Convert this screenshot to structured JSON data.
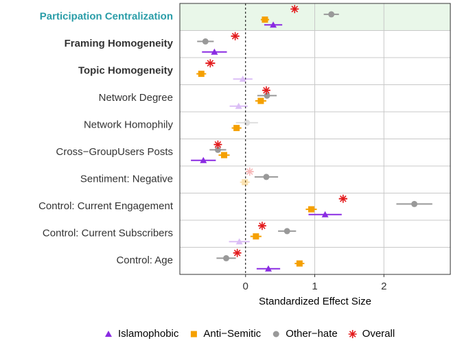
{
  "chart_data": {
    "type": "dot_whisker",
    "xlabel": "Standardized Effect Size",
    "categories": [
      "Participation Centralization",
      "Framing Homogeneity",
      "Topic Homogeneity",
      "Network Degree",
      "Network Homophily",
      "Cross−GroupUsers Posts",
      "Sentiment: Negative",
      "Control: Current Engagement",
      "Control: Current Subscribers",
      "Control: Age"
    ],
    "highlight_category": 0,
    "highlight_color": "#2a9da8",
    "highlight_fill": "#e9f7e9",
    "bold_categories": [
      1,
      2
    ],
    "xlim": [
      -0.95,
      2.96
    ],
    "xticks": [
      0,
      1,
      2
    ],
    "refline": 0,
    "grid": true,
    "legend": "bottom",
    "series": [
      {
        "name": "Islamophobic",
        "color": "#8a2be2",
        "marker": "triangle",
        "values": [
          0.4,
          -0.45,
          -0.04,
          -0.1,
          null,
          -0.61,
          null,
          1.15,
          -0.09,
          0.33
        ],
        "errors": [
          0.13,
          0.18,
          0.14,
          0.13,
          null,
          0.18,
          null,
          0.24,
          0.15,
          0.17
        ],
        "faded": [
          false,
          false,
          true,
          true,
          false,
          false,
          false,
          false,
          true,
          false
        ]
      },
      {
        "name": "Anti−Semitic",
        "color": "#f5a000",
        "marker": "square",
        "values": [
          0.28,
          null,
          -0.64,
          0.22,
          -0.13,
          -0.31,
          -0.01,
          0.95,
          0.15,
          0.78
        ],
        "errors": [
          0.06,
          null,
          0.07,
          0.08,
          0.07,
          0.08,
          0.07,
          0.08,
          0.08,
          0.07
        ],
        "faded": [
          false,
          false,
          false,
          false,
          false,
          false,
          true,
          false,
          false,
          false
        ]
      },
      {
        "name": "Other−hate",
        "color": "#999999",
        "marker": "circle",
        "values": [
          1.24,
          -0.58,
          null,
          0.31,
          0.02,
          -0.4,
          0.3,
          2.44,
          0.6,
          -0.28
        ],
        "errors": [
          0.11,
          0.12,
          null,
          0.14,
          0.16,
          0.12,
          0.17,
          0.26,
          0.13,
          0.14
        ],
        "faded": [
          false,
          false,
          false,
          false,
          true,
          false,
          false,
          false,
          false,
          false
        ]
      },
      {
        "name": "Overall",
        "color": "#e31a1c",
        "marker": "asterisk",
        "values": [
          0.71,
          -0.15,
          -0.51,
          0.3,
          null,
          -0.4,
          0.06,
          1.41,
          0.24,
          -0.12
        ],
        "errors": [
          0.03,
          0.06,
          0.07,
          0.05,
          null,
          0.05,
          0.05,
          0.06,
          0.05,
          0.05
        ],
        "faded": [
          false,
          false,
          false,
          false,
          false,
          false,
          true,
          false,
          false,
          false
        ]
      }
    ]
  }
}
